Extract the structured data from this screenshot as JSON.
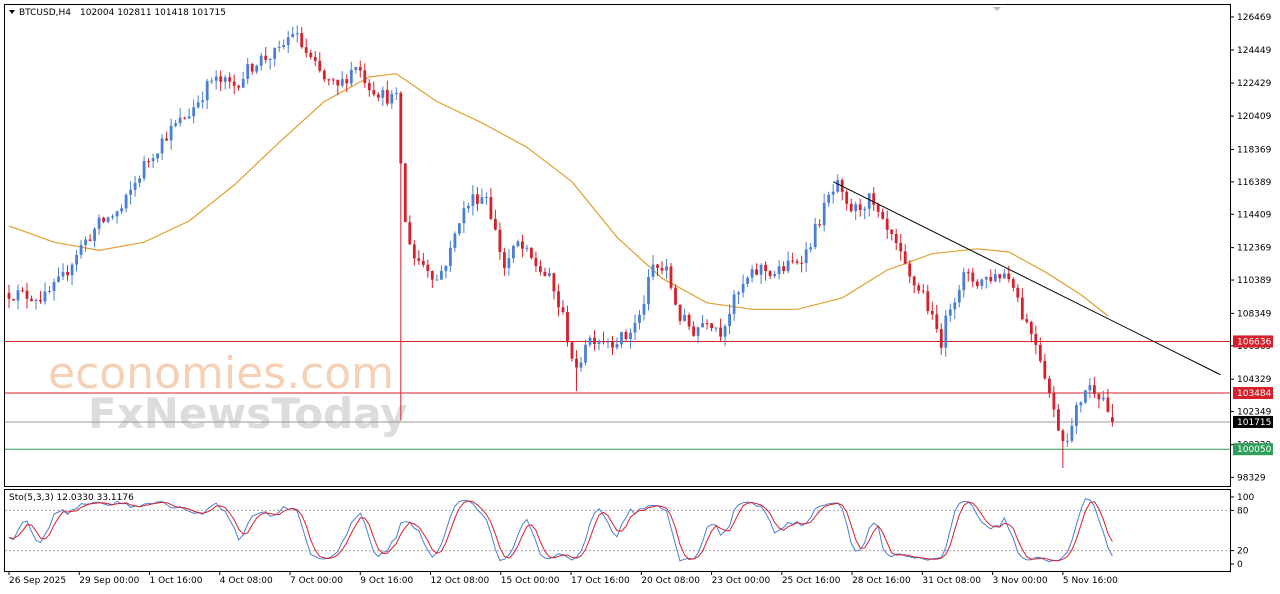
{
  "header": {
    "symbol_label": "BTCUSD,H4",
    "ohlc_label": "102004 102811 101418 101715",
    "stoch_label": "Sto(5,3,3) 12.0330 33.1176"
  },
  "watermark": {
    "line1": "economies.com",
    "line2": "FxNewsToday"
  },
  "colors": {
    "bull": "#4a7fd4",
    "bear": "#d6202c",
    "ma": "#e0a030",
    "trendline": "#000000",
    "resistance": "#d6202c",
    "support": "#2e9e5a",
    "stoch_main": "#4a7fd4",
    "stoch_signal": "#d6202c"
  },
  "chart_data": {
    "type": "candlestick",
    "symbol": "BTCUSD",
    "timeframe": "H4",
    "ylim": [
      97800,
      127200
    ],
    "y_ticks": [
      126469,
      124449,
      122429,
      120409,
      118369,
      116389,
      114409,
      112369,
      110389,
      108349,
      106369,
      104329,
      102349,
      100329,
      98329
    ],
    "x_ticks": [
      "26 Sep 2025",
      "29 Sep 00:00",
      "1 Oct 16:00",
      "4 Oct 08:00",
      "7 Oct 00:00",
      "9 Oct 16:00",
      "12 Oct 08:00",
      "15 Oct 00:00",
      "17 Oct 16:00",
      "20 Oct 08:00",
      "23 Oct 00:00",
      "25 Oct 16:00",
      "28 Oct 16:00",
      "31 Oct 08:00",
      "3 Nov 00:00",
      "5 Nov 16:00"
    ],
    "close_path": [
      [
        0,
        109600
      ],
      [
        8,
        109300
      ],
      [
        12,
        110500
      ],
      [
        15,
        112100
      ],
      [
        20,
        113800
      ],
      [
        25,
        114700
      ],
      [
        30,
        117400
      ],
      [
        35,
        119300
      ],
      [
        40,
        120600
      ],
      [
        45,
        122600
      ],
      [
        50,
        122300
      ],
      [
        55,
        123800
      ],
      [
        60,
        124300
      ],
      [
        63,
        125600
      ],
      [
        67,
        123800
      ],
      [
        70,
        122600
      ],
      [
        73,
        122100
      ],
      [
        77,
        123600
      ],
      [
        80,
        122300
      ],
      [
        83,
        121700
      ],
      [
        86,
        121400
      ],
      [
        87,
        117600
      ],
      [
        88,
        113800
      ],
      [
        90,
        111800
      ],
      [
        93,
        111200
      ],
      [
        95,
        110400
      ],
      [
        98,
        112100
      ],
      [
        100,
        114200
      ],
      [
        103,
        115400
      ],
      [
        106,
        115600
      ],
      [
        108,
        113300
      ],
      [
        110,
        111200
      ],
      [
        113,
        112600
      ],
      [
        116,
        111600
      ],
      [
        120,
        110400
      ],
      [
        123,
        108100
      ],
      [
        126,
        104600
      ],
      [
        128,
        106700
      ],
      [
        130,
        106900
      ],
      [
        134,
        106700
      ],
      [
        137,
        106900
      ],
      [
        140,
        108100
      ],
      [
        143,
        111200
      ],
      [
        146,
        110900
      ],
      [
        149,
        108100
      ],
      [
        152,
        107300
      ],
      [
        155,
        108100
      ],
      [
        158,
        107300
      ],
      [
        161,
        109100
      ],
      [
        164,
        110400
      ],
      [
        167,
        111100
      ],
      [
        170,
        110800
      ],
      [
        174,
        111400
      ],
      [
        177,
        112100
      ],
      [
        180,
        114100
      ],
      [
        182,
        115400
      ],
      [
        184,
        116100
      ],
      [
        186,
        114700
      ],
      [
        188,
        114700
      ],
      [
        191,
        115300
      ],
      [
        194,
        113700
      ],
      [
        197,
        112400
      ],
      [
        200,
        110400
      ],
      [
        203,
        109600
      ],
      [
        205,
        107900
      ],
      [
        207,
        106700
      ],
      [
        209,
        108900
      ],
      [
        212,
        110600
      ],
      [
        215,
        110300
      ],
      [
        218,
        110600
      ],
      [
        221,
        110800
      ],
      [
        223,
        110300
      ],
      [
        225,
        108300
      ],
      [
        228,
        106700
      ],
      [
        230,
        104700
      ],
      [
        232,
        102300
      ],
      [
        234,
        100700
      ],
      [
        236,
        101300
      ],
      [
        237,
        102400
      ],
      [
        239,
        103800
      ],
      [
        241,
        103800
      ],
      [
        243,
        103200
      ],
      [
        245,
        101715
      ]
    ],
    "moving_average": [
      [
        0,
        113700
      ],
      [
        10,
        112700
      ],
      [
        20,
        112200
      ],
      [
        30,
        112700
      ],
      [
        40,
        114000
      ],
      [
        50,
        116200
      ],
      [
        60,
        118800
      ],
      [
        70,
        121300
      ],
      [
        80,
        122800
      ],
      [
        86,
        123000
      ],
      [
        95,
        121300
      ],
      [
        105,
        120000
      ],
      [
        115,
        118500
      ],
      [
        125,
        116400
      ],
      [
        135,
        113000
      ],
      [
        145,
        110500
      ],
      [
        155,
        109000
      ],
      [
        165,
        108600
      ],
      [
        175,
        108600
      ],
      [
        185,
        109300
      ],
      [
        195,
        111000
      ],
      [
        205,
        112000
      ],
      [
        215,
        112300
      ],
      [
        222,
        112100
      ],
      [
        230,
        110900
      ],
      [
        238,
        109500
      ],
      [
        244,
        108200
      ]
    ],
    "trendline": {
      "from": [
        183,
        116400
      ],
      "to": [
        269,
        104600
      ]
    },
    "horizontal_levels": [
      {
        "value": 106636,
        "label": "106636",
        "role": "resistance"
      },
      {
        "value": 103484,
        "label": "103484",
        "role": "resistance"
      },
      {
        "value": 101715,
        "label": "101715",
        "role": "current"
      },
      {
        "value": 100050,
        "label": "100050",
        "role": "support"
      }
    ],
    "stochastic": {
      "params": "5,3,3",
      "main": 12.033,
      "signal": 33.1176,
      "ylim": [
        0,
        100
      ],
      "levels": [
        80,
        20
      ],
      "y_ticks": [
        100,
        80,
        20,
        0
      ]
    }
  }
}
